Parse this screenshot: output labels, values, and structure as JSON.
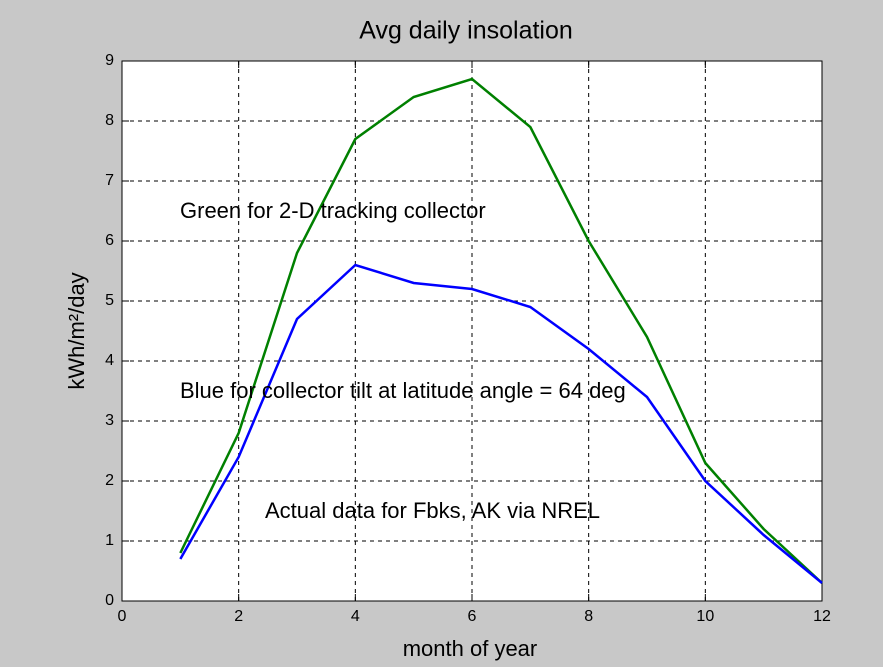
{
  "chart_data": {
    "type": "line",
    "title": "Avg daily insolation",
    "x_label": "month of year",
    "y_label": "kWh/m²/day",
    "x": [
      1,
      2,
      3,
      4,
      5,
      6,
      7,
      8,
      9,
      10,
      11,
      12
    ],
    "series": [
      {
        "name": "2-D tracking collector",
        "color": "#008000",
        "values": [
          0.8,
          2.8,
          5.8,
          7.7,
          8.4,
          8.7,
          7.9,
          6.0,
          4.4,
          2.3,
          1.2,
          0.3
        ]
      },
      {
        "name": "collector tilt at latitude angle = 64 deg",
        "color": "#0000ff",
        "values": [
          0.7,
          2.4,
          4.7,
          5.6,
          5.3,
          5.2,
          4.9,
          4.2,
          3.4,
          2.0,
          1.1,
          0.3
        ]
      }
    ],
    "annotations": [
      "Green for 2-D tracking collector",
      "Blue for collector tilt at latitude angle = 64 deg",
      "Actual data for Fbks, AK via NREL"
    ],
    "xlim": [
      0,
      12
    ],
    "xticks": [
      0,
      2,
      4,
      6,
      8,
      10,
      12
    ],
    "ylim": [
      0,
      9
    ],
    "yticks": [
      0,
      1,
      2,
      3,
      4,
      5,
      6,
      7,
      8,
      9
    ],
    "grid": true
  }
}
